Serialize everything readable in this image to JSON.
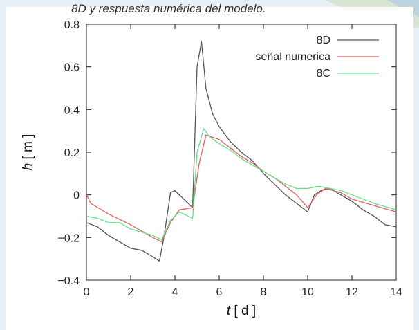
{
  "caption": "8D y respuesta numérica del modelo.",
  "chart_data": {
    "type": "line",
    "title": "",
    "xlabel_italic": "t",
    "xlabel_unit": "[ d ]",
    "ylabel_italic": "h",
    "ylabel_unit": "[ m ]",
    "xlim": [
      0,
      14
    ],
    "ylim": [
      -0.4,
      0.8
    ],
    "x_ticks": [
      0,
      2,
      4,
      6,
      8,
      10,
      12,
      14
    ],
    "y_ticks": [
      -0.4,
      -0.2,
      0,
      0.2,
      0.4,
      0.6,
      0.8
    ],
    "x_tick_labels": [
      "0",
      "2",
      "4",
      "6",
      "8",
      "10",
      "12",
      "14"
    ],
    "y_tick_labels": [
      "−0.4",
      "−0.2",
      "0",
      "0.2",
      "0.4",
      "0.6",
      "0.8"
    ],
    "grid": false,
    "legend_position": "top-right",
    "series": [
      {
        "name": "8D",
        "color": "#555555",
        "points": [
          [
            0,
            -0.13
          ],
          [
            0.5,
            -0.15
          ],
          [
            1,
            -0.19
          ],
          [
            2,
            -0.25
          ],
          [
            2.5,
            -0.26
          ],
          [
            3,
            -0.29
          ],
          [
            3.3,
            -0.31
          ],
          [
            3.5,
            -0.2
          ],
          [
            3.8,
            0.01
          ],
          [
            4,
            0.02
          ],
          [
            4.5,
            -0.03
          ],
          [
            4.8,
            -0.06
          ],
          [
            5,
            0.6
          ],
          [
            5.2,
            0.72
          ],
          [
            5.4,
            0.5
          ],
          [
            5.7,
            0.38
          ],
          [
            6,
            0.32
          ],
          [
            6.5,
            0.25
          ],
          [
            7,
            0.2
          ],
          [
            7.5,
            0.16
          ],
          [
            8,
            0.1
          ],
          [
            8.5,
            0.05
          ],
          [
            9,
            0.0
          ],
          [
            9.5,
            -0.04
          ],
          [
            10,
            -0.08
          ],
          [
            10.3,
            0.0
          ],
          [
            10.6,
            0.02
          ],
          [
            11,
            0.03
          ],
          [
            11.5,
            0.0
          ],
          [
            12,
            -0.03
          ],
          [
            12.5,
            -0.07
          ],
          [
            13,
            -0.1
          ],
          [
            13.5,
            -0.14
          ],
          [
            14,
            -0.15
          ]
        ]
      },
      {
        "name": "señal numerica",
        "color": "#e06060",
        "points": [
          [
            0,
            0.0
          ],
          [
            0.2,
            -0.04
          ],
          [
            1,
            -0.09
          ],
          [
            2,
            -0.14
          ],
          [
            3,
            -0.2
          ],
          [
            3.4,
            -0.22
          ],
          [
            3.8,
            -0.13
          ],
          [
            4.2,
            -0.07
          ],
          [
            4.8,
            -0.06
          ],
          [
            5.1,
            0.15
          ],
          [
            5.4,
            0.28
          ],
          [
            6,
            0.26
          ],
          [
            6.5,
            0.22
          ],
          [
            7,
            0.18
          ],
          [
            7.5,
            0.15
          ],
          [
            8,
            0.11
          ],
          [
            8.5,
            0.08
          ],
          [
            9,
            0.04
          ],
          [
            9.5,
            0.0
          ],
          [
            10,
            -0.06
          ],
          [
            10.4,
            0.0
          ],
          [
            10.8,
            0.03
          ],
          [
            11.5,
            0.01
          ],
          [
            12,
            -0.02
          ],
          [
            13,
            -0.05
          ],
          [
            14,
            -0.08
          ]
        ]
      },
      {
        "name": "8C",
        "color": "#66dd88",
        "points": [
          [
            0,
            -0.1
          ],
          [
            0.5,
            -0.11
          ],
          [
            1,
            -0.13
          ],
          [
            1.5,
            -0.13
          ],
          [
            2,
            -0.16
          ],
          [
            3,
            -0.19
          ],
          [
            3.4,
            -0.21
          ],
          [
            3.8,
            -0.12
          ],
          [
            4.2,
            -0.08
          ],
          [
            4.8,
            -0.11
          ],
          [
            5.0,
            0.2
          ],
          [
            5.3,
            0.31
          ],
          [
            5.6,
            0.27
          ],
          [
            6,
            0.24
          ],
          [
            6.5,
            0.21
          ],
          [
            7,
            0.17
          ],
          [
            7.5,
            0.14
          ],
          [
            8,
            0.11
          ],
          [
            8.5,
            0.08
          ],
          [
            9,
            0.05
          ],
          [
            9.5,
            0.03
          ],
          [
            10,
            0.03
          ],
          [
            10.5,
            0.04
          ],
          [
            11,
            0.03
          ],
          [
            11.5,
            0.02
          ],
          [
            12,
            0.0
          ],
          [
            12.5,
            -0.02
          ],
          [
            13,
            -0.04
          ],
          [
            14,
            -0.07
          ]
        ]
      }
    ]
  }
}
